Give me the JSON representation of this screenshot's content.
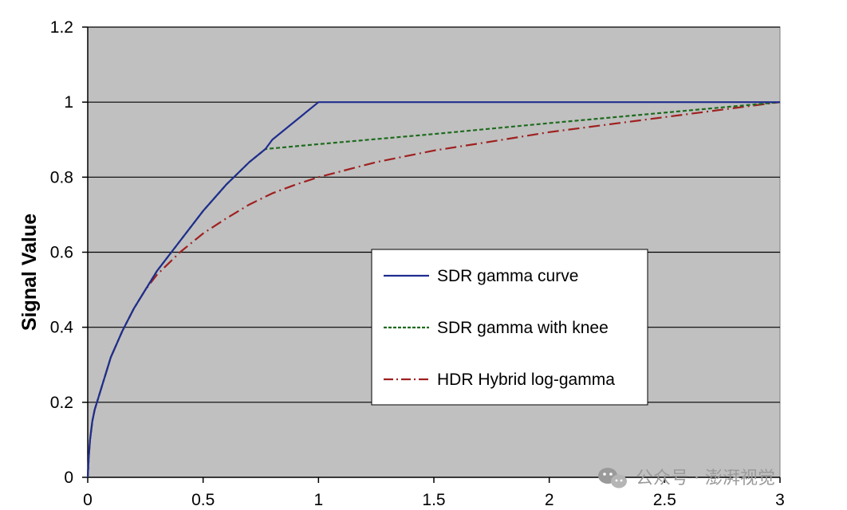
{
  "chart_data": {
    "type": "line",
    "title": "",
    "xlabel": "",
    "ylabel": "Signal Value",
    "xlim": [
      0,
      3
    ],
    "ylim": [
      0,
      1.2
    ],
    "xticks": [
      0,
      0.5,
      1,
      1.5,
      2,
      2.5,
      3
    ],
    "xtick_labels": [
      "0",
      "0.5",
      "1",
      "1.5",
      "2",
      "2.5",
      "3"
    ],
    "yticks": [
      0,
      0.2,
      0.4,
      0.6,
      0.8,
      1,
      1.2
    ],
    "ytick_labels": [
      "0",
      "0.2",
      "0.4",
      "0.6",
      "0.8",
      "1",
      "1.2"
    ],
    "grid": "horizontal",
    "plot_background": "#c0c0c0",
    "legend_position": "center-right",
    "series": [
      {
        "name": "SDR gamma curve",
        "color": "#1f2d8f",
        "style": "solid",
        "points": [
          [
            0,
            0
          ],
          [
            0.005,
            0.06
          ],
          [
            0.01,
            0.1
          ],
          [
            0.02,
            0.15
          ],
          [
            0.03,
            0.18
          ],
          [
            0.04,
            0.2
          ],
          [
            0.05,
            0.22
          ],
          [
            0.08,
            0.28
          ],
          [
            0.1,
            0.32
          ],
          [
            0.15,
            0.39
          ],
          [
            0.2,
            0.45
          ],
          [
            0.3,
            0.55
          ],
          [
            0.4,
            0.63
          ],
          [
            0.5,
            0.71
          ],
          [
            0.6,
            0.78
          ],
          [
            0.7,
            0.84
          ],
          [
            0.77,
            0.875
          ],
          [
            0.8,
            0.9
          ],
          [
            0.9,
            0.95
          ],
          [
            1.0,
            1.0
          ],
          [
            3.0,
            1.0
          ]
        ]
      },
      {
        "name": "SDR gamma with knee",
        "color": "#1e6b1e",
        "style": "dashed",
        "points": [
          [
            0,
            0
          ],
          [
            0.005,
            0.06
          ],
          [
            0.01,
            0.1
          ],
          [
            0.02,
            0.15
          ],
          [
            0.03,
            0.18
          ],
          [
            0.04,
            0.2
          ],
          [
            0.05,
            0.22
          ],
          [
            0.08,
            0.28
          ],
          [
            0.1,
            0.32
          ],
          [
            0.15,
            0.39
          ],
          [
            0.2,
            0.45
          ],
          [
            0.3,
            0.55
          ],
          [
            0.4,
            0.63
          ],
          [
            0.5,
            0.71
          ],
          [
            0.6,
            0.78
          ],
          [
            0.7,
            0.84
          ],
          [
            0.77,
            0.875
          ],
          [
            1.0,
            0.888
          ],
          [
            1.5,
            0.915
          ],
          [
            2.0,
            0.944
          ],
          [
            2.5,
            0.972
          ],
          [
            3.0,
            1.0
          ]
        ]
      },
      {
        "name": "HDR Hybrid log-gamma",
        "color": "#a02020",
        "style": "dash-dot",
        "points": [
          [
            0,
            0
          ],
          [
            0.005,
            0.06
          ],
          [
            0.01,
            0.1
          ],
          [
            0.02,
            0.15
          ],
          [
            0.03,
            0.18
          ],
          [
            0.04,
            0.2
          ],
          [
            0.05,
            0.22
          ],
          [
            0.08,
            0.28
          ],
          [
            0.1,
            0.32
          ],
          [
            0.15,
            0.39
          ],
          [
            0.2,
            0.45
          ],
          [
            0.25,
            0.5
          ],
          [
            0.3,
            0.54
          ],
          [
            0.4,
            0.6
          ],
          [
            0.5,
            0.65
          ],
          [
            0.6,
            0.69
          ],
          [
            0.7,
            0.727
          ],
          [
            0.8,
            0.757
          ],
          [
            0.9,
            0.78
          ],
          [
            1.0,
            0.8
          ],
          [
            1.25,
            0.84
          ],
          [
            1.5,
            0.871
          ],
          [
            1.75,
            0.895
          ],
          [
            2.0,
            0.92
          ],
          [
            2.25,
            0.94
          ],
          [
            2.5,
            0.96
          ],
          [
            2.75,
            0.98
          ],
          [
            3.0,
            1.0
          ]
        ]
      }
    ]
  },
  "watermark": {
    "text": "公众号 · 澎湃视觉",
    "icon": "wechat-icon"
  }
}
